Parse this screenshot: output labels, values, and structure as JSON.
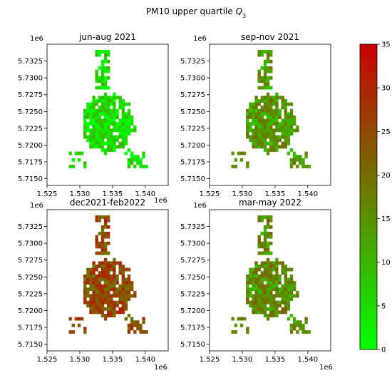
{
  "figure": {
    "suptitle": "PM10 upper quartile ",
    "suptitle_symbol": "Q",
    "suptitle_subscript": "3"
  },
  "chart_data": [
    {
      "type": "heatmap",
      "title": "jun-aug 2021",
      "x_offset": "1e6",
      "y_offset": "1e6",
      "xlim": [
        1.525,
        1.5435
      ],
      "ylim": [
        5.714,
        5.735
      ],
      "x_ticks": [
        "1.525",
        "1.530",
        "1.535",
        "1.540"
      ],
      "y_ticks": [
        "5.7150",
        "5.7175",
        "5.7200",
        "5.7225",
        "5.7250",
        "5.7275",
        "5.7300",
        "5.7325"
      ],
      "values_summary": "mostly low (approx. 0-8)",
      "level": 0.12
    },
    {
      "type": "heatmap",
      "title": "sep-nov 2021",
      "x_offset": "",
      "y_offset": "1e6",
      "xlim": [
        1.525,
        1.5435
      ],
      "ylim": [
        5.714,
        5.735
      ],
      "x_ticks": [
        "1.525",
        "1.530",
        "1.535",
        "1.540"
      ],
      "y_ticks": [
        "5.7150",
        "5.7175",
        "5.7200",
        "5.7225",
        "5.7250",
        "5.7275",
        "5.7300",
        "5.7325"
      ],
      "values_summary": "moderate (approx. 5-25)",
      "level": 0.4
    },
    {
      "type": "heatmap",
      "title": "dec2021-feb2022",
      "x_offset": "1e6",
      "y_offset": "1e6",
      "xlim": [
        1.525,
        1.5435
      ],
      "ylim": [
        5.714,
        5.735
      ],
      "x_ticks": [
        "1.525",
        "1.530",
        "1.535",
        "1.540"
      ],
      "y_ticks": [
        "5.7150",
        "5.7175",
        "5.7200",
        "5.7225",
        "5.7250",
        "5.7275",
        "5.7300",
        "5.7325"
      ],
      "values_summary": "high (approx. 15-35)",
      "level": 0.7
    },
    {
      "type": "heatmap",
      "title": "mar-may 2022",
      "x_offset": "1e6",
      "y_offset": "1e6",
      "xlim": [
        1.525,
        1.5435
      ],
      "ylim": [
        5.714,
        5.735
      ],
      "x_ticks": [
        "1.525",
        "1.530",
        "1.535",
        "1.540"
      ],
      "y_ticks": [
        "5.7150",
        "5.7175",
        "5.7200",
        "5.7225",
        "5.7250",
        "5.7275",
        "5.7300",
        "5.7325"
      ],
      "values_summary": "moderate (approx. 10-25)",
      "level": 0.45
    }
  ],
  "colorbar": {
    "min": 0,
    "max": 35,
    "ticks": [
      "0",
      "5",
      "10",
      "15",
      "20",
      "25",
      "30",
      "35"
    ],
    "color_low": "#00ff00",
    "color_high": "#cc0000"
  }
}
